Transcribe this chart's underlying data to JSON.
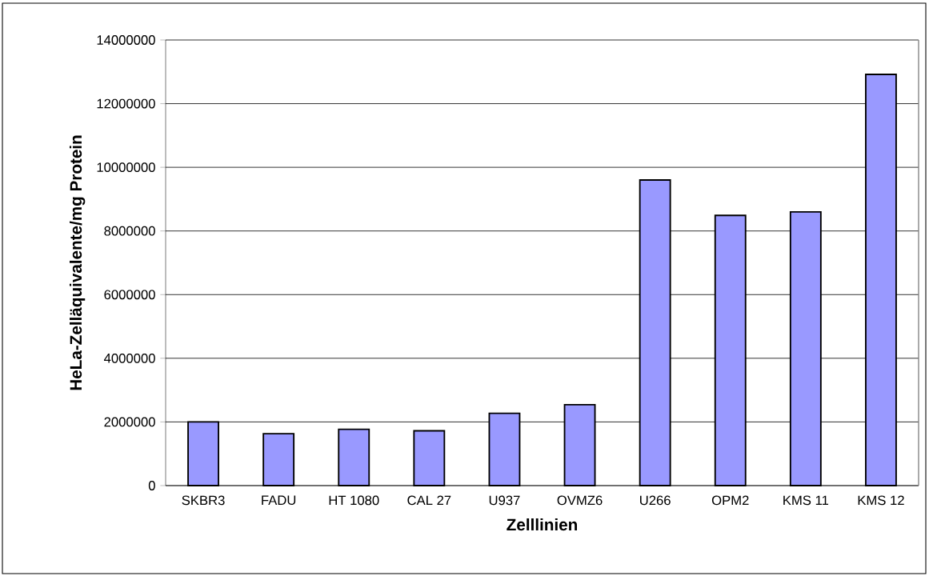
{
  "chart_data": {
    "type": "bar",
    "xlabel": "Zelllinien",
    "ylabel": "HeLa-Zelläquivalente/mg Protein",
    "categories": [
      "SKBR3",
      "FADU",
      "HT 1080",
      "CAL 27",
      "U937",
      "OVMZ6",
      "U266",
      "OPM2",
      "KMS 11",
      "KMS 12"
    ],
    "values": [
      2000000,
      1630000,
      1770000,
      1720000,
      2270000,
      2540000,
      9600000,
      8490000,
      8600000,
      12920000
    ],
    "color": "#9999ff",
    "ylim": [
      0,
      14000000
    ],
    "yticks": [
      0,
      2000000,
      4000000,
      6000000,
      8000000,
      10000000,
      12000000,
      14000000
    ],
    "grid": "y"
  }
}
